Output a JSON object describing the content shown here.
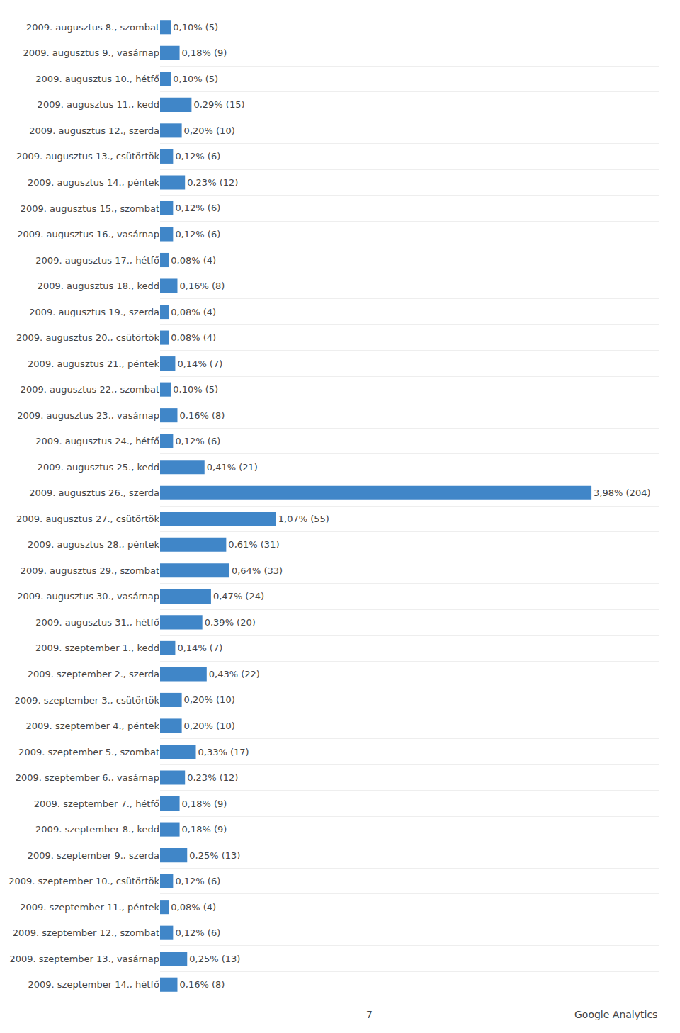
{
  "chart_data": {
    "type": "bar",
    "orientation": "horizontal",
    "categories": [
      "2009. augusztus 8., szombat",
      "2009. augusztus 9., vasárnap",
      "2009. augusztus 10., hétfő",
      "2009. augusztus 11., kedd",
      "2009. augusztus 12., szerda",
      "2009. augusztus 13., csütörtök",
      "2009. augusztus 14., péntek",
      "2009. augusztus 15., szombat",
      "2009. augusztus 16., vasárnap",
      "2009. augusztus 17., hétfő",
      "2009. augusztus 18., kedd",
      "2009. augusztus 19., szerda",
      "2009. augusztus 20., csütörtök",
      "2009. augusztus 21., péntek",
      "2009. augusztus 22., szombat",
      "2009. augusztus 23., vasárnap",
      "2009. augusztus 24., hétfő",
      "2009. augusztus 25., kedd",
      "2009. augusztus 26., szerda",
      "2009. augusztus 27., csütörtök",
      "2009. augusztus 28., péntek",
      "2009. augusztus 29., szombat",
      "2009. augusztus 30., vasárnap",
      "2009. augusztus 31., hétfő",
      "2009. szeptember 1., kedd",
      "2009. szeptember 2., szerda",
      "2009. szeptember 3., csütörtök",
      "2009. szeptember 4., péntek",
      "2009. szeptember 5., szombat",
      "2009. szeptember 6., vasárnap",
      "2009. szeptember 7., hétfő",
      "2009. szeptember 8., kedd",
      "2009. szeptember 9., szerda",
      "2009. szeptember 10., csütörtök",
      "2009. szeptember 11., péntek",
      "2009. szeptember 12., szombat",
      "2009. szeptember 13., vasárnap",
      "2009. szeptember 14., hétfő"
    ],
    "values": [
      0.1,
      0.18,
      0.1,
      0.29,
      0.2,
      0.12,
      0.23,
      0.12,
      0.12,
      0.08,
      0.16,
      0.08,
      0.08,
      0.14,
      0.1,
      0.16,
      0.12,
      0.41,
      3.98,
      1.07,
      0.61,
      0.64,
      0.47,
      0.39,
      0.14,
      0.43,
      0.2,
      0.2,
      0.33,
      0.23,
      0.18,
      0.18,
      0.25,
      0.12,
      0.08,
      0.12,
      0.25,
      0.16
    ],
    "value_labels": [
      "0,10% (5)",
      "0,18% (9)",
      "0,10% (5)",
      "0,29% (15)",
      "0,20% (10)",
      "0,12% (6)",
      "0,23% (12)",
      "0,12% (6)",
      "0,12% (6)",
      "0,08% (4)",
      "0,16% (8)",
      "0,08% (4)",
      "0,08% (4)",
      "0,14% (7)",
      "0,10% (5)",
      "0,16% (8)",
      "0,12% (6)",
      "0,41% (21)",
      "3,98% (204)",
      "1,07% (55)",
      "0,61% (31)",
      "0,64% (33)",
      "0,47% (24)",
      "0,39% (20)",
      "0,14% (7)",
      "0,43% (22)",
      "0,20% (10)",
      "0,20% (10)",
      "0,33% (17)",
      "0,23% (12)",
      "0,18% (9)",
      "0,18% (9)",
      "0,25% (13)",
      "0,12% (6)",
      "0,08% (4)",
      "0,12% (6)",
      "0,25% (13)",
      "0,16% (8)"
    ],
    "color": "#4086c8",
    "xlim": [
      0,
      4.6
    ],
    "tick_labels": "y",
    "grid": true,
    "data_labels": true,
    "annotations": [
      "7",
      "Google Analytics"
    ]
  }
}
